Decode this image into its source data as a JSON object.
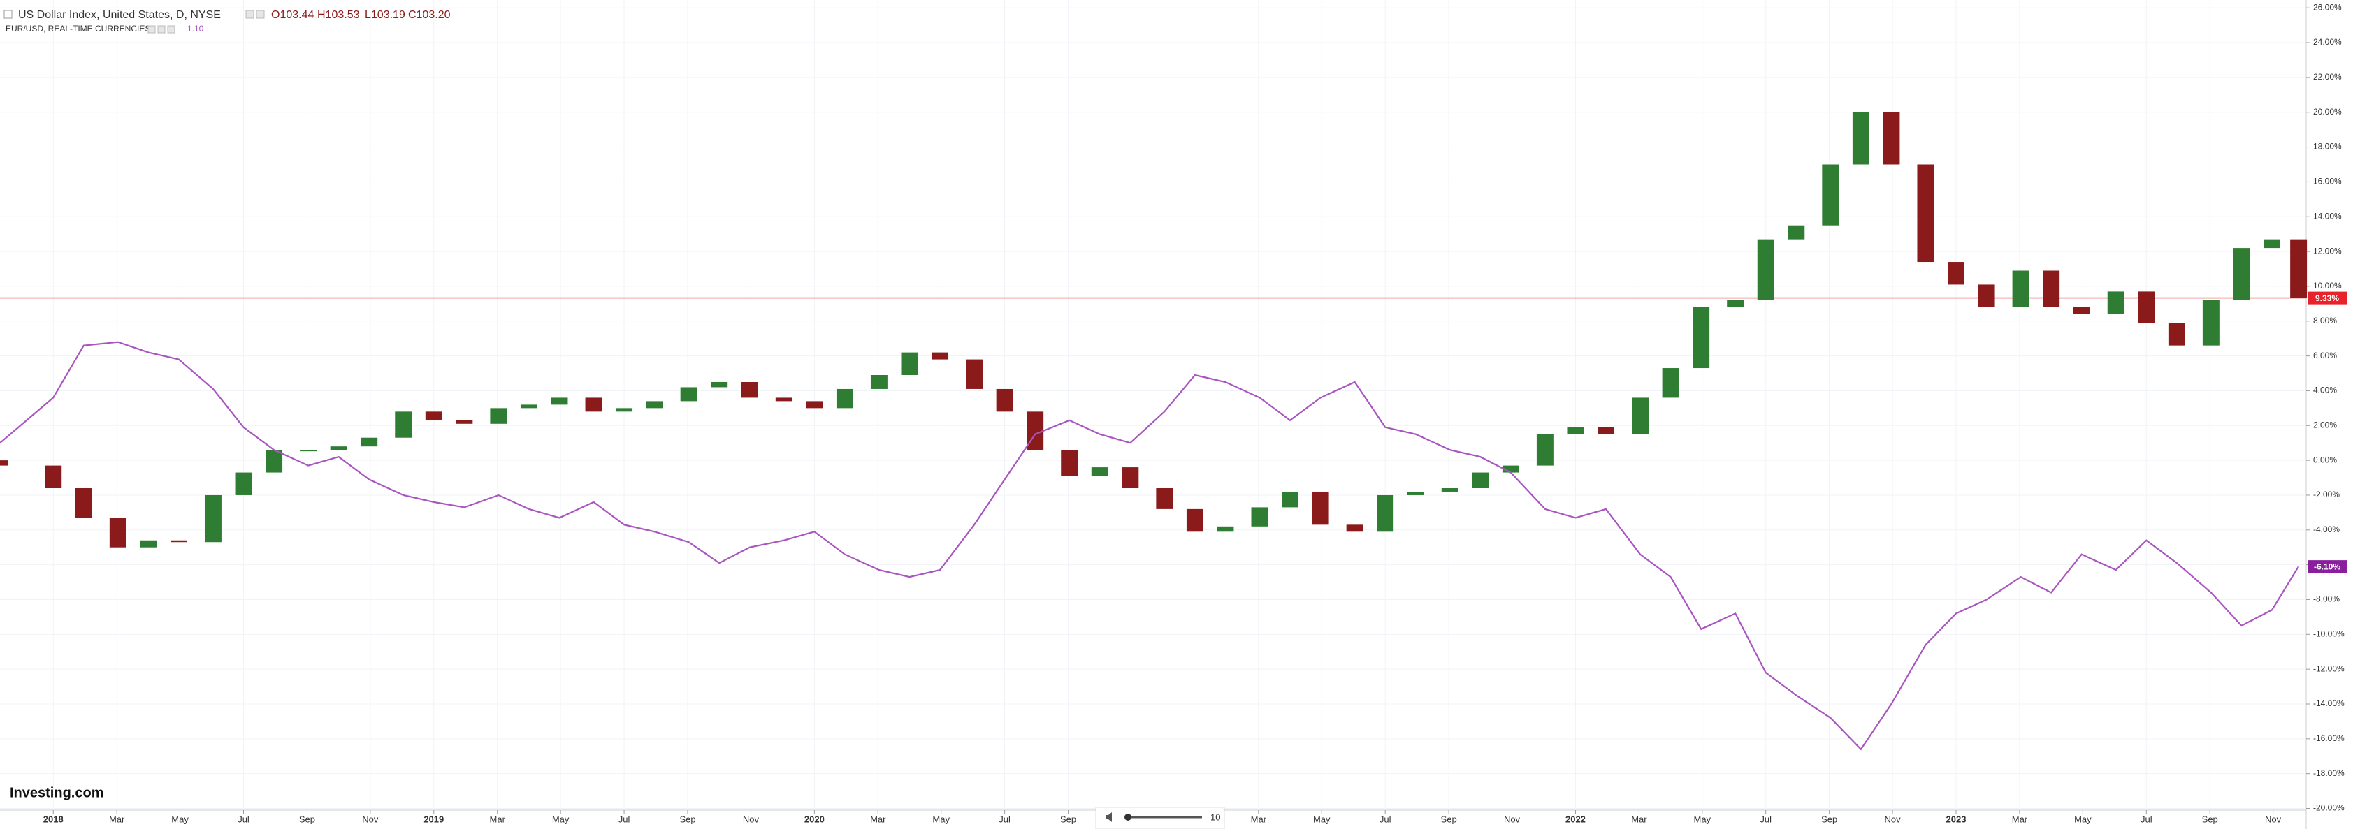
{
  "chart_data": {
    "type": "candlestick-line",
    "header_values": [
      "O103.44",
      "H103.53",
      "L103.19",
      "C103.20"
    ],
    "watermark": "Investing.com",
    "zoom_value": 10,
    "grid": true,
    "xlim": [
      2017.86,
      2023.92
    ],
    "ylim": [
      -20.1,
      26.45
    ],
    "xticks": [
      2018,
      {
        "value": 2018.167,
        "label": "Mar"
      },
      {
        "value": 2018.333,
        "label": "May"
      },
      {
        "value": 2018.5,
        "label": "Jul"
      },
      {
        "value": 2018.667,
        "label": "Sep"
      },
      {
        "value": 2018.833,
        "label": "Nov"
      },
      2019,
      {
        "value": 2019.167,
        "label": "Mar"
      },
      {
        "value": 2019.333,
        "label": "May"
      },
      {
        "value": 2019.5,
        "label": "Jul"
      },
      {
        "value": 2019.667,
        "label": "Sep"
      },
      {
        "value": 2019.833,
        "label": "Nov"
      },
      2020,
      {
        "value": 2020.167,
        "label": "Mar"
      },
      {
        "value": 2020.333,
        "label": "May"
      },
      {
        "value": 2020.5,
        "label": "Jul"
      },
      {
        "value": 2020.667,
        "label": "Sep"
      },
      {
        "value": 2021.167,
        "label": "Mar"
      },
      {
        "value": 2021.333,
        "label": "May"
      },
      {
        "value": 2021.5,
        "label": "Jul"
      },
      {
        "value": 2021.667,
        "label": "Sep"
      },
      {
        "value": 2021.833,
        "label": "Nov"
      },
      2022,
      {
        "value": 2022.167,
        "label": "Mar"
      },
      {
        "value": 2022.333,
        "label": "May"
      },
      {
        "value": 2022.5,
        "label": "Jul"
      },
      {
        "value": 2022.667,
        "label": "Sep"
      },
      {
        "value": 2022.833,
        "label": "Nov"
      },
      2023,
      {
        "value": 2023.167,
        "label": "Mar"
      },
      {
        "value": 2023.333,
        "label": "May"
      },
      {
        "value": 2023.5,
        "label": "Jul"
      },
      {
        "value": 2023.667,
        "label": "Sep"
      },
      {
        "value": 2023.833,
        "label": "Nov"
      }
    ],
    "yticks": [
      {
        "value": 26,
        "label": "26.00%"
      },
      {
        "value": 24,
        "label": "24.00%"
      },
      {
        "value": 22,
        "label": "22.00%"
      },
      {
        "value": 20,
        "label": "20.00%"
      },
      {
        "value": 18,
        "label": "18.00%"
      },
      {
        "value": 16,
        "label": "16.00%"
      },
      {
        "value": 14,
        "label": "14.00%"
      },
      {
        "value": 12,
        "label": "12.00%"
      },
      {
        "value": 10,
        "label": "10.00%"
      },
      {
        "value": 8,
        "label": "8.00%"
      },
      {
        "value": 6,
        "label": "6.00%"
      },
      {
        "value": 4,
        "label": "4.00%"
      },
      {
        "value": 2,
        "label": "2.00%"
      },
      {
        "value": 0,
        "label": "0.00%"
      },
      {
        "value": -2,
        "label": "-2.00%"
      },
      {
        "value": -4,
        "label": "-4.00%"
      },
      {
        "value": -6,
        "label": "-6.00%"
      },
      {
        "value": -8,
        "label": "-8.00%"
      },
      {
        "value": -10,
        "label": "-10.00%"
      },
      {
        "value": -12,
        "label": "-12.00%"
      },
      {
        "value": -14,
        "label": "-14.00%"
      },
      {
        "value": -16,
        "label": "-16.00%"
      },
      {
        "value": -18,
        "label": "-18.00%"
      },
      {
        "value": -20,
        "label": "-20.00%"
      }
    ],
    "x": [
      2017.86,
      2018,
      2018.08,
      2018.17,
      2018.25,
      2018.33,
      2018.42,
      2018.5,
      2018.58,
      2018.67,
      2018.75,
      2018.83,
      2018.92,
      2019,
      2019.08,
      2019.17,
      2019.25,
      2019.33,
      2019.42,
      2019.5,
      2019.58,
      2019.67,
      2019.75,
      2019.83,
      2019.92,
      2020,
      2020.08,
      2020.17,
      2020.25,
      2020.33,
      2020.42,
      2020.5,
      2020.58,
      2020.67,
      2020.75,
      2020.83,
      2020.92,
      2021,
      2021.08,
      2021.17,
      2021.25,
      2021.33,
      2021.42,
      2021.5,
      2021.58,
      2021.67,
      2021.75,
      2021.83,
      2021.92,
      2022,
      2022.08,
      2022.17,
      2022.25,
      2022.33,
      2022.42,
      2022.5,
      2022.58,
      2022.67,
      2022.75,
      2022.83,
      2022.92,
      2023,
      2023.08,
      2023.17,
      2023.25,
      2023.33,
      2023.42,
      2023.5,
      2023.58,
      2023.67,
      2023.75,
      2023.83,
      2023.9
    ],
    "series": [
      {
        "name": "US Dollar Index, United States, D, NYSE",
        "style": "candles",
        "up_color": "#2e7d32",
        "down_color": "#8b1a1a",
        "line_color": "#f4a7a7",
        "last_label": "9.33%",
        "tag_color": "#e8222b",
        "open": [
          0,
          -0.3,
          -1.6,
          -3.3,
          -5,
          -4.6,
          -4.7,
          -2,
          -0.7,
          0.6,
          0.6,
          0.8,
          1.3,
          2.8,
          2.3,
          2.1,
          3,
          3.2,
          3.6,
          2.8,
          3,
          3.4,
          4.2,
          4.5,
          3.6,
          3.4,
          3,
          4.1,
          4.9,
          6.2,
          5.8,
          4.1,
          2.8,
          0.6,
          -0.9,
          -0.4,
          -1.6,
          -2.8,
          -4.1,
          -3.8,
          -2.7,
          -1.8,
          -3.7,
          -4.1,
          -2,
          -1.8,
          -1.6,
          -0.7,
          -0.3,
          1.5,
          1.9,
          1.5,
          3.6,
          5.3,
          8.8,
          9.2,
          12.7,
          13.5,
          17,
          20,
          17,
          11.4,
          10.1,
          8.8,
          10.9,
          8.8,
          8.4,
          9.7,
          7.9,
          6.6,
          9.2,
          12.2,
          12.7
        ],
        "values": [
          -0.3,
          -1.6,
          -3.3,
          -5,
          -4.6,
          -4.7,
          -2,
          -0.7,
          0.6,
          0.6,
          0.8,
          1.3,
          2.8,
          2.3,
          2.1,
          3,
          3.2,
          3.6,
          2.8,
          3,
          3.4,
          4.2,
          4.5,
          3.6,
          3.4,
          3,
          4.1,
          4.9,
          6.2,
          5.8,
          4.1,
          2.8,
          0.6,
          -0.9,
          -0.4,
          -1.6,
          -2.8,
          -4.1,
          -3.8,
          -2.7,
          -1.8,
          -3.7,
          -4.1,
          -2,
          -1.8,
          -1.6,
          -0.7,
          -0.3,
          1.5,
          1.9,
          1.5,
          3.6,
          5.3,
          8.8,
          9.2,
          12.7,
          13.5,
          17,
          20,
          17,
          11.4,
          10.1,
          8.8,
          10.9,
          8.8,
          8.4,
          9.7,
          7.9,
          6.6,
          9.2,
          12.2,
          12.7,
          9.33
        ]
      },
      {
        "name": "EUR/USD, REAL-TIME CURRENCIES",
        "style": "line",
        "color": "#a855c0",
        "price": "1.10",
        "last_label": "-6.10%",
        "tag_color": "#8a1f9e",
        "values": [
          1,
          3.6,
          6.6,
          6.8,
          6.2,
          5.8,
          4.1,
          1.9,
          0.6,
          -0.3,
          0.2,
          -1.1,
          -2,
          -2.4,
          -2.7,
          -2,
          -2.8,
          -3.3,
          -2.4,
          -3.7,
          -4.1,
          -4.7,
          -5.9,
          -5,
          -4.6,
          -4.1,
          -5.4,
          -6.3,
          -6.7,
          -6.3,
          -3.7,
          -1.1,
          1.5,
          2.3,
          1.5,
          1,
          2.8,
          4.9,
          4.5,
          3.6,
          2.3,
          3.6,
          4.5,
          1.9,
          1.5,
          0.6,
          0.2,
          -0.7,
          -2.8,
          -3.3,
          -2.8,
          -5.4,
          -6.7,
          -9.7,
          -8.8,
          -12.2,
          -13.5,
          -14.8,
          -16.6,
          -14,
          -10.6,
          -8.8,
          -8,
          -6.7,
          -7.6,
          -5.4,
          -6.3,
          -4.6,
          -5.9,
          -7.6,
          -9.5,
          -8.6,
          -6.1
        ]
      }
    ]
  }
}
